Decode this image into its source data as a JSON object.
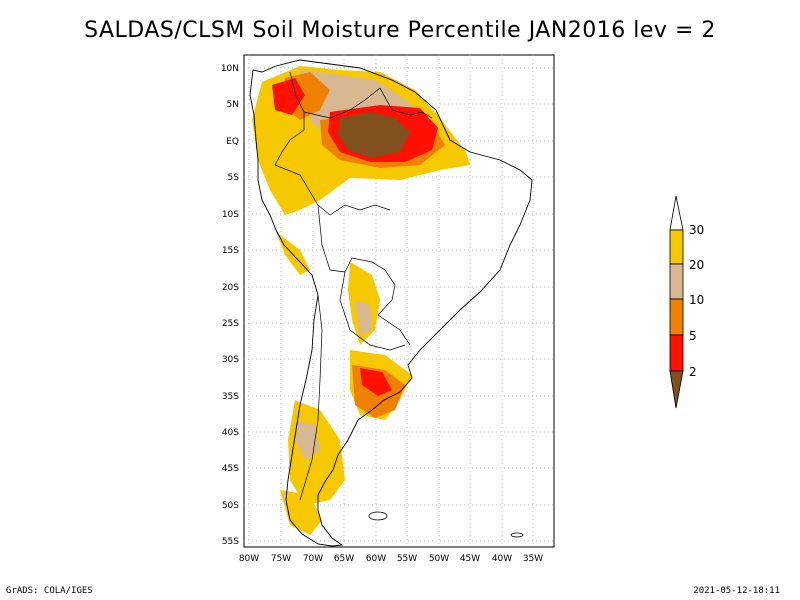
{
  "title": "SALDAS/CLSM Soil Moisture Percentile JAN2016 lev = 2",
  "map": {
    "lat_ticks": [
      "10N",
      "5N",
      "EQ",
      "5S",
      "10S",
      "15S",
      "20S",
      "25S",
      "30S",
      "35S",
      "40S",
      "45S",
      "50S",
      "55S"
    ],
    "lon_ticks": [
      "80W",
      "75W",
      "70W",
      "65W",
      "60W",
      "55W",
      "50W",
      "45W",
      "40W",
      "35W"
    ]
  },
  "legend": {
    "labels": [
      "30",
      "20",
      "10",
      "5",
      "2"
    ],
    "colors": {
      "gt30": "#ffffff",
      "20_30": "#f5c800",
      "10_20": "#d8b890",
      "5_10": "#f08000",
      "2_5": "#ff1000",
      "lt2": "#80501e"
    }
  },
  "footer": {
    "left": "GrADS: COLA/IGES",
    "right": "2021-05-12-18:11"
  }
}
